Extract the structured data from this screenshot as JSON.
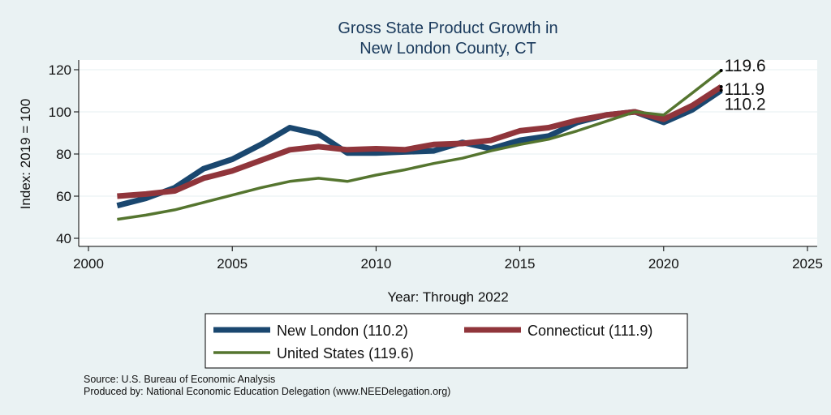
{
  "chart_data": {
    "type": "line",
    "title": [
      "Gross State Product Growth in",
      "New London County, CT"
    ],
    "xlabel": "Year: Through 2022",
    "ylabel": "Index: 2019 = 100",
    "xlim": [
      2000,
      2025
    ],
    "ylim": [
      40,
      120
    ],
    "xticks": [
      "2000",
      "2005",
      "2010",
      "2015",
      "2020",
      "2025"
    ],
    "yticks": [
      "40",
      "60",
      "80",
      "100",
      "120"
    ],
    "grid": true,
    "series": [
      {
        "name": "New London",
        "legend_label": "New London  (110.2)",
        "color": "#1a476f",
        "x": [
          2001,
          2002,
          2003,
          2004,
          2005,
          2006,
          2007,
          2008,
          2009,
          2010,
          2011,
          2012,
          2013,
          2014,
          2015,
          2016,
          2017,
          2018,
          2019,
          2020,
          2021,
          2022
        ],
        "values": [
          55.5,
          59,
          64,
          73,
          77.5,
          84.5,
          92.5,
          89.5,
          80.5,
          80.5,
          81,
          81.5,
          85.5,
          82.5,
          86.5,
          88.5,
          95,
          98.5,
          100,
          95,
          101,
          110.2
        ],
        "end_label": "110.2"
      },
      {
        "name": "Connecticut",
        "legend_label": "Connecticut (111.9)",
        "color": "#90353b",
        "x": [
          2001,
          2002,
          2003,
          2004,
          2005,
          2006,
          2007,
          2008,
          2009,
          2010,
          2011,
          2012,
          2013,
          2014,
          2015,
          2016,
          2017,
          2018,
          2019,
          2020,
          2021,
          2022
        ],
        "values": [
          60,
          61,
          62.5,
          68.5,
          72,
          77,
          82,
          83.5,
          82,
          82.5,
          82,
          84.5,
          85,
          86.5,
          91,
          92.5,
          96,
          98.5,
          100,
          96.5,
          103,
          111.9
        ],
        "end_label": "111.9"
      },
      {
        "name": "United States",
        "legend_label": "United States (119.6)",
        "color": "#55752f",
        "x": [
          2001,
          2002,
          2003,
          2004,
          2005,
          2006,
          2007,
          2008,
          2009,
          2010,
          2011,
          2012,
          2013,
          2014,
          2015,
          2016,
          2017,
          2018,
          2019,
          2020,
          2021,
          2022
        ],
        "values": [
          49,
          51,
          53.5,
          57,
          60.5,
          64,
          67,
          68.5,
          67,
          70,
          72.5,
          75.5,
          78,
          81.5,
          84.5,
          87,
          91,
          95.5,
          100,
          98.5,
          109,
          119.6
        ],
        "end_label": "119.6"
      }
    ],
    "legend_position": "bottom",
    "notes": [
      "Source: U.S. Bureau of Economic Analysis",
      "Produced by: National Economic Education Delegation (www.NEEDelegation.org)"
    ]
  }
}
